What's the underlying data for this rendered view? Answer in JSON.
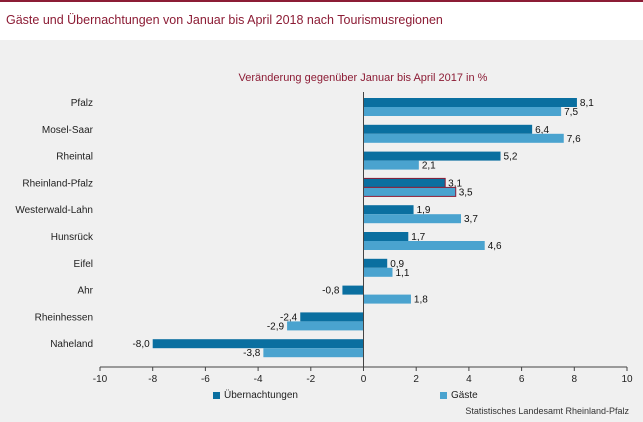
{
  "title": "Gäste und Übernachtungen von Januar bis April 2018 nach Tourismusregionen",
  "subtitle": "Veränderung gegenüber Januar bis April 2017 in %",
  "source": "Statistisches Landesamt Rheinland-Pfalz",
  "colors": {
    "uebernachtungen": "#0a6fa0",
    "gaeste": "#4aa3cf",
    "highlight_border": "#8c1c35",
    "title": "#8c1c35"
  },
  "chart_data": {
    "type": "bar",
    "orientation": "horizontal",
    "categories": [
      "Pfalz",
      "Mosel-Saar",
      "Rheintal",
      "Rheinland-Pfalz",
      "Westerwald-Lahn",
      "Hunsrück",
      "Eifel",
      "Ahr",
      "Rheinhessen",
      "Naheland"
    ],
    "series": [
      {
        "name": "Übernachtungen",
        "values": [
          8.1,
          6.4,
          5.2,
          3.1,
          1.9,
          1.7,
          0.9,
          -0.8,
          -2.4,
          -8.0
        ],
        "labels": [
          "8,1",
          "6,4",
          "5,2",
          "3,1",
          "1,9",
          "1,7",
          "0,9",
          "-0,8",
          "-2,4",
          "-8,0"
        ]
      },
      {
        "name": "Gäste",
        "values": [
          7.5,
          7.6,
          2.1,
          3.5,
          3.7,
          4.6,
          1.1,
          1.8,
          -2.9,
          -3.8
        ],
        "labels": [
          "7,5",
          "7,6",
          "2,1",
          "3,5",
          "3,7",
          "4,6",
          "1,1",
          "1,8",
          "-2,9",
          "-3,8"
        ]
      }
    ],
    "highlight_category": "Rheinland-Pfalz",
    "xlim": [
      -10,
      10
    ],
    "xticks": [
      -10,
      -8,
      -6,
      -4,
      -2,
      0,
      2,
      4,
      6,
      8,
      10
    ],
    "grid": false,
    "legend_position": "bottom"
  }
}
